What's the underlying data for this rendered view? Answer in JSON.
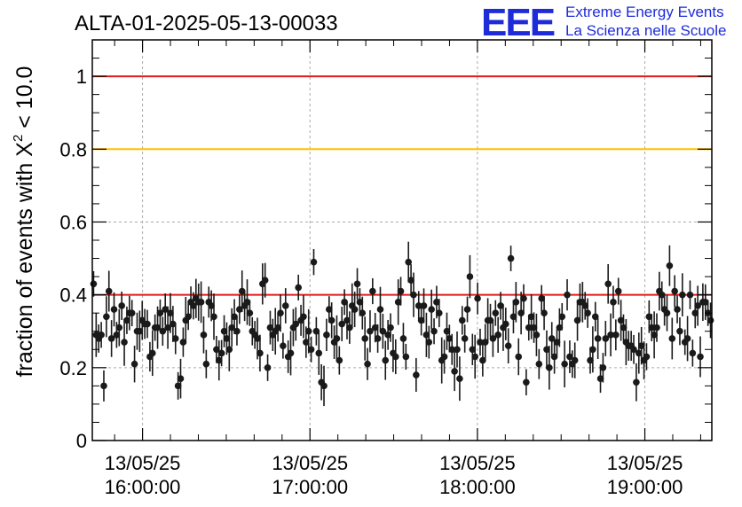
{
  "chart_data": {
    "type": "scatter",
    "title": "ALTA-01-2025-05-13-00033",
    "ylabel_main": "fraction of events with X",
    "ylabel_sup": "2",
    "ylabel_tail": " < 10.0",
    "ylim": [
      0,
      1.1
    ],
    "yticks": [
      0,
      0.2,
      0.4,
      0.6,
      0.8,
      1
    ],
    "yticklabels": [
      "0",
      "0.2",
      "0.4",
      "0.6",
      "0.8",
      "1"
    ],
    "xlim": [
      "15:42",
      "19:24"
    ],
    "xticks": [
      {
        "time": "16:00",
        "date_label": "13/05/25",
        "time_label": "16:00:00"
      },
      {
        "time": "17:00",
        "date_label": "13/05/25",
        "time_label": "17:00:00"
      },
      {
        "time": "18:00",
        "date_label": "13/05/25",
        "time_label": "18:00:00"
      },
      {
        "time": "19:00",
        "date_label": "13/05/25",
        "time_label": "19:00:00"
      }
    ],
    "grid": true,
    "reference_lines": [
      {
        "y": 1.0,
        "color": "#e41a1a"
      },
      {
        "y": 0.8,
        "color": "#ffc000"
      },
      {
        "y": 0.4,
        "color": "#e41a1a"
      }
    ],
    "marker_color": "#1a1a1a",
    "series": [
      {
        "values": [
          0.43,
          0.29,
          0.28,
          0.29,
          0.15,
          0.34,
          0.41,
          0.28,
          0.36,
          0.29,
          0.31,
          0.37,
          0.27,
          0.33,
          0.35,
          0.35,
          0.21,
          0.3,
          0.3,
          0.33,
          0.32,
          0.32,
          0.23,
          0.24,
          0.31,
          0.31,
          0.35,
          0.3,
          0.36,
          0.31,
          0.35,
          0.32,
          0.28,
          0.15,
          0.17,
          0.27,
          0.33,
          0.34,
          0.38,
          0.37,
          0.39,
          0.38,
          0.38,
          0.29,
          0.21,
          0.38,
          0.37,
          0.34,
          0.25,
          0.22,
          0.24,
          0.3,
          0.28,
          0.25,
          0.31,
          0.34,
          0.3,
          0.36,
          0.41,
          0.37,
          0.38,
          0.35,
          0.3,
          0.29,
          0.28,
          0.24,
          0.43,
          0.44,
          0.2,
          0.31,
          0.29,
          0.3,
          0.31,
          0.35,
          0.26,
          0.37,
          0.23,
          0.24,
          0.31,
          0.32,
          0.42,
          0.33,
          0.34,
          0.27,
          0.3,
          0.25,
          0.49,
          0.3,
          0.24,
          0.16,
          0.15,
          0.29,
          0.36,
          0.33,
          0.27,
          0.28,
          0.22,
          0.32,
          0.38,
          0.33,
          0.31,
          0.37,
          0.36,
          0.43,
          0.38,
          0.35,
          0.28,
          0.21,
          0.3,
          0.41,
          0.31,
          0.28,
          0.36,
          0.3,
          0.22,
          0.29,
          0.31,
          0.24,
          0.23,
          0.38,
          0.41,
          0.28,
          0.23,
          0.49,
          0.44,
          0.4,
          0.18,
          0.37,
          0.33,
          0.37,
          0.29,
          0.27,
          0.36,
          0.3,
          0.38,
          0.35,
          0.22,
          0.23,
          0.3,
          0.28,
          0.25,
          0.19,
          0.25,
          0.17,
          0.33,
          0.28,
          0.36,
          0.45,
          0.25,
          0.23,
          0.39,
          0.27,
          0.22,
          0.27,
          0.33,
          0.33,
          0.28,
          0.35,
          0.29,
          0.37,
          0.31,
          0.32,
          0.26,
          0.5,
          0.34,
          0.38,
          0.23,
          0.35,
          0.39,
          0.16,
          0.31,
          0.34,
          0.31,
          0.29,
          0.21,
          0.39,
          0.35,
          0.25,
          0.2,
          0.28,
          0.23,
          0.27,
          0.31,
          0.34,
          0.21,
          0.4,
          0.23,
          0.21,
          0.22,
          0.33,
          0.38,
          0.38,
          0.37,
          0.35,
          0.22,
          0.25,
          0.34,
          0.28,
          0.17,
          0.2,
          0.28,
          0.43,
          0.29,
          0.38,
          0.29,
          0.41,
          0.33,
          0.31,
          0.27,
          0.26,
          0.26,
          0.25,
          0.16,
          0.24,
          0.26,
          0.22,
          0.23,
          0.34,
          0.31,
          0.29,
          0.31,
          0.41,
          0.4,
          0.36,
          0.35,
          0.48,
          0.28,
          0.41,
          0.36,
          0.3,
          0.4,
          0.27,
          0.28,
          0.4,
          0.24,
          0.35,
          0.37,
          0.23,
          0.38,
          0.38,
          0.35,
          0.33
        ]
      }
    ]
  },
  "logo": {
    "mark": "EEE",
    "line1": "Extreme Energy Events",
    "line2": "La Scienza nelle Scuole",
    "color": "#1e2bd8"
  }
}
